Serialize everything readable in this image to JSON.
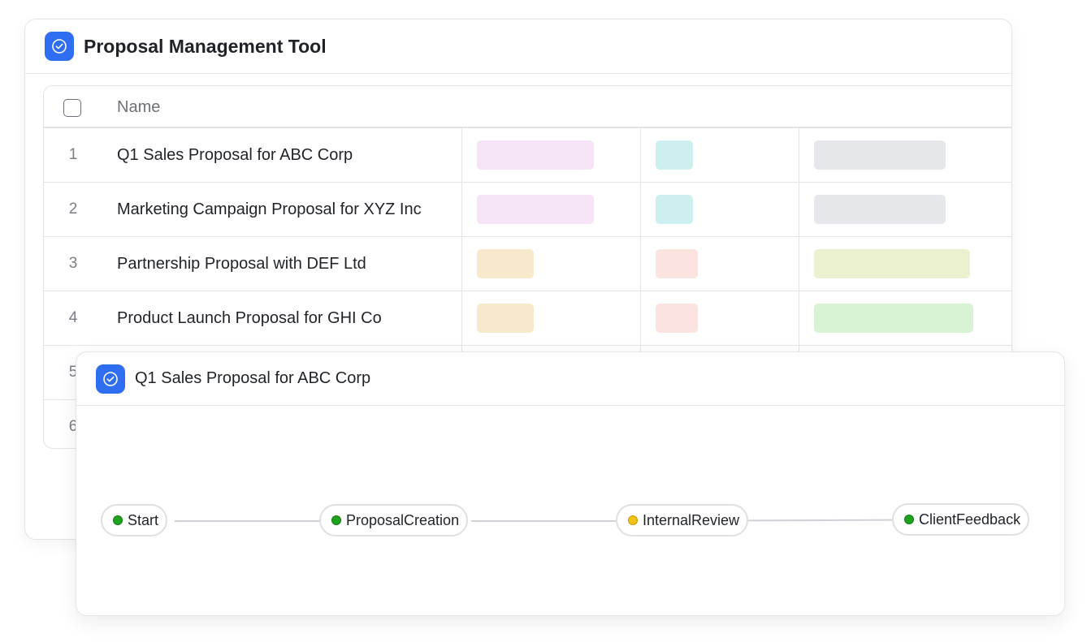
{
  "app": {
    "title": "Proposal Management Tool",
    "icon": "check-circle-icon",
    "accent_color": "#2f6ef0"
  },
  "table": {
    "columns": [
      "Name"
    ],
    "rows": [
      {
        "num": "1",
        "name": "Q1 Sales Proposal for ABC Corp"
      },
      {
        "num": "2",
        "name": "Marketing Campaign Proposal for XYZ Inc"
      },
      {
        "num": "3",
        "name": "Partnership Proposal with DEF Ltd"
      },
      {
        "num": "4",
        "name": "Product Launch Proposal for GHI Co"
      },
      {
        "num": "5",
        "name": ""
      },
      {
        "num": "6",
        "name": ""
      }
    ],
    "tag_colors": {
      "pink": "#f5e4f6",
      "teal": "#cdf0ee",
      "gray": "#e6e7ea",
      "peach": "#f8e8cc",
      "rose": "#fbe3e0",
      "lime": "#ebf1cf",
      "green": "#d8f2d4"
    }
  },
  "detail": {
    "title": "Q1 Sales Proposal for ABC Corp",
    "flow_nodes": [
      {
        "label": "Start",
        "status": "green"
      },
      {
        "label": "ProposalCreation",
        "status": "green"
      },
      {
        "label": "InternalReview",
        "status": "yellow"
      },
      {
        "label": "ClientFeedback",
        "status": "green"
      }
    ],
    "status_colors": {
      "green": "#1fa31f",
      "yellow": "#f2c21b"
    }
  }
}
